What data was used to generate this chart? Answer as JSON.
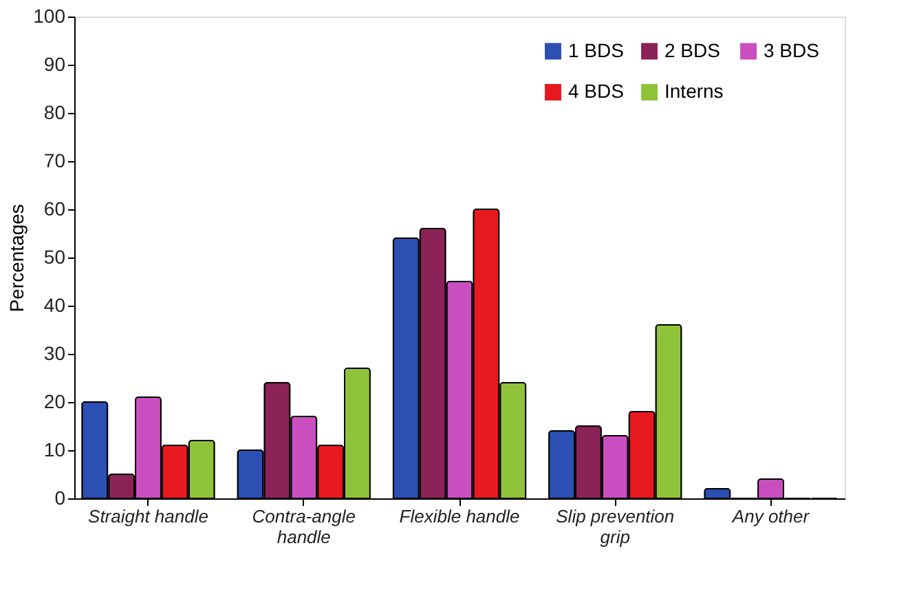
{
  "chart_data": {
    "type": "bar",
    "ylabel": "Percentages",
    "categories": [
      "Straight handle",
      "Contra-angle handle",
      "Flexible handle",
      "Slip prevention grip",
      "Any other"
    ],
    "series": [
      {
        "name": "1 BDS",
        "color": "#2b4fb3",
        "values": [
          20,
          10,
          54,
          14,
          2
        ]
      },
      {
        "name": "2 BDS",
        "color": "#8b2358",
        "values": [
          5,
          24,
          56,
          15,
          0
        ]
      },
      {
        "name": "3 BDS",
        "color": "#c94fc0",
        "values": [
          21,
          17,
          45,
          13,
          4
        ]
      },
      {
        "name": "4 BDS",
        "color": "#e8191e",
        "values": [
          11,
          11,
          60,
          18,
          0
        ]
      },
      {
        "name": "Interns",
        "color": "#8fc43a",
        "values": [
          12,
          27,
          24,
          36,
          0
        ]
      }
    ],
    "ylim": [
      0,
      100
    ],
    "yticks": [
      0,
      10,
      20,
      30,
      40,
      50,
      60,
      70,
      80,
      90,
      100
    ],
    "grid": false,
    "legend": "top right"
  }
}
